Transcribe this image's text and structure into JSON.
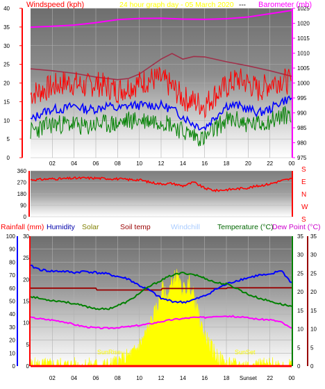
{
  "header": {
    "windspeed": "Windspeed (kph)",
    "title": "24 hour graph day - 05 March 2020",
    "dash": "---",
    "barometer": "Barometer (mb)"
  },
  "legend": {
    "rainfall": "Rainfall (mm)",
    "humidity": "Humidity",
    "solar": "Solar",
    "soil": "Soil temp",
    "windchill": "Windchill",
    "temperature": "Temperature (°C)",
    "dewpoint": "Dew Point (°C)"
  },
  "compass": [
    "S",
    "E",
    "N",
    "W",
    "S"
  ],
  "sunrise": "SunRise",
  "sunset_label": "SunSet",
  "sunset_axis": "Sunset",
  "colors": {
    "windspeed": "#ff0000",
    "gust": "#ff0000",
    "avgwind": "#0000ff",
    "lowwind": "#008000",
    "barometer": "#ff00ff",
    "pressure2": "#a0304a",
    "winddir": "#ff0000",
    "humidity": "#0000ff",
    "temperature": "#008000",
    "dewpoint": "#ff00ff",
    "soiltemp": "#990000",
    "solar": "#ffff00",
    "rain": "#ff0000",
    "title": "#ffff00",
    "windchill": "#aaccff",
    "legendSolar": "#808000"
  },
  "chart_data": [
    {
      "type": "line",
      "name": "wind-barometer",
      "x_ticks": [
        "02",
        "04",
        "06",
        "08",
        "10",
        "12",
        "14",
        "16",
        "18",
        "20",
        "22",
        "00"
      ],
      "left_axis": {
        "ylim": [
          0,
          40
        ],
        "ticks": [
          "0",
          "5",
          "10",
          "15",
          "20",
          "25",
          "30",
          "35",
          "40"
        ],
        "label": "Windspeed (kph)"
      },
      "right_axis": {
        "ylim": [
          975,
          1025
        ],
        "ticks": [
          "975",
          "980",
          "985",
          "990",
          "995",
          "1000",
          "1005",
          "1010",
          "1015",
          "1020",
          "1025"
        ],
        "label": "Barometer (mb)"
      },
      "barometer": {
        "x": [
          0,
          2,
          4,
          6,
          8,
          10,
          12,
          14,
          16,
          18,
          20,
          22,
          24
        ],
        "y": [
          1018.7,
          1019.0,
          1019.4,
          1020.2,
          1021.2,
          1021.6,
          1021.7,
          1021.4,
          1021.3,
          1021.5,
          1022.1,
          1023.2,
          1024.3
        ]
      },
      "pressure_trend": {
        "x": [
          0,
          2,
          4,
          6,
          8,
          9,
          10,
          12,
          13,
          14,
          15,
          16,
          18,
          20,
          22,
          24
        ],
        "y": [
          23.8,
          23.3,
          22.6,
          21.6,
          20.9,
          21.2,
          22.4,
          26.4,
          27.9,
          26.4,
          27.1,
          27.0,
          25.7,
          24.6,
          23.3,
          21.8
        ]
      },
      "wind_upper": {
        "x": [
          0,
          1,
          2,
          3,
          4,
          5,
          6,
          7,
          8,
          9,
          10,
          11,
          12,
          13,
          14,
          15,
          16,
          17,
          18,
          19,
          20,
          21,
          22,
          23,
          24
        ],
        "y": [
          17,
          18,
          19,
          20,
          20,
          19,
          20,
          19,
          18,
          19,
          20,
          21,
          21,
          19,
          16,
          15,
          14,
          17,
          19,
          21,
          20,
          18,
          20,
          21,
          20
        ]
      },
      "wind_avg": {
        "x": [
          0,
          1,
          2,
          3,
          4,
          5,
          6,
          7,
          8,
          9,
          10,
          11,
          12,
          13,
          14,
          15,
          16,
          17,
          18,
          19,
          20,
          21,
          22,
          23,
          24
        ],
        "y": [
          10,
          12,
          13,
          13,
          14,
          13,
          13,
          14,
          13,
          14,
          14,
          14,
          14,
          13,
          11,
          9,
          8,
          11,
          14,
          14,
          13,
          12,
          13,
          15,
          16
        ]
      },
      "wind_low": {
        "x": [
          0,
          1,
          2,
          3,
          4,
          5,
          6,
          7,
          8,
          9,
          10,
          11,
          12,
          13,
          14,
          15,
          16,
          17,
          18,
          19,
          20,
          21,
          22,
          23,
          24
        ],
        "y": [
          7,
          8,
          9,
          9,
          9,
          8,
          9,
          9,
          9,
          10,
          10,
          10,
          10,
          9,
          7,
          6,
          5,
          8,
          10,
          10,
          9,
          9,
          10,
          11,
          12
        ]
      }
    },
    {
      "type": "line",
      "name": "wind-direction",
      "y_ticks": [
        "0",
        "90",
        "180",
        "270",
        "360"
      ],
      "ylim": [
        0,
        360
      ],
      "direction": {
        "x": [
          0,
          1,
          2,
          3,
          4,
          5,
          6,
          7,
          8,
          9,
          10,
          11,
          12,
          13,
          14,
          15,
          16,
          17,
          18,
          19,
          20,
          21,
          22,
          23,
          24
        ],
        "y": [
          290,
          293,
          298,
          298,
          302,
          304,
          303,
          300,
          297,
          292,
          290,
          270,
          258,
          262,
          242,
          270,
          224,
          205,
          212,
          220,
          228,
          243,
          258,
          282,
          298
        ]
      }
    },
    {
      "type": "line",
      "name": "climate",
      "x_ticks": [
        "02",
        "04",
        "06",
        "08",
        "10",
        "12",
        "14",
        "16",
        "18",
        "Sunset",
        "22",
        "00"
      ],
      "rain_axis": {
        "ylim": [
          0,
          100
        ],
        "ticks": [
          "0",
          "10",
          "20",
          "30",
          "40",
          "50",
          "60",
          "70",
          "80",
          "90",
          "100"
        ]
      },
      "humidity_axis": {
        "ylim": [
          0,
          30
        ],
        "ticks": [
          "0",
          "5",
          "10",
          "15",
          "20",
          "25",
          "30"
        ]
      },
      "temperature_axis": {
        "ylim": [
          0,
          35
        ],
        "ticks": [
          "0",
          "5",
          "10",
          "15",
          "20",
          "25",
          "30",
          "35"
        ]
      },
      "humidity": {
        "x": [
          0,
          1,
          2,
          3,
          4,
          5,
          6,
          7,
          8,
          9,
          10,
          11,
          12,
          13,
          14,
          15,
          16,
          17,
          18,
          19,
          20,
          21,
          22,
          23,
          24
        ],
        "y": [
          77,
          74,
          73,
          73,
          72,
          73,
          72,
          71,
          69,
          67,
          62,
          58,
          52,
          50,
          49,
          51,
          54,
          59,
          63,
          66,
          68,
          70,
          70,
          74,
          64
        ]
      },
      "temperature": {
        "x": [
          0,
          1,
          2,
          3,
          4,
          5,
          6,
          7,
          8,
          9,
          10,
          11,
          12,
          13,
          14,
          15,
          16,
          17,
          18,
          19,
          20,
          21,
          22,
          23,
          24
        ],
        "y": [
          18.8,
          18.1,
          17.7,
          17.4,
          16.8,
          16.1,
          15.5,
          15.3,
          16.3,
          17.5,
          19.6,
          21.6,
          23.1,
          24.5,
          25.1,
          24.7,
          23.7,
          22.5,
          22.1,
          20.9,
          19.3,
          18.3,
          17.5,
          16.7,
          16.1
        ]
      },
      "dewpoint": {
        "x": [
          0,
          1,
          2,
          3,
          4,
          5,
          6,
          7,
          8,
          9,
          10,
          11,
          12,
          13,
          14,
          15,
          16,
          17,
          18,
          19,
          20,
          21,
          22,
          23,
          24
        ],
        "y": [
          13.1,
          12.7,
          12.4,
          12.0,
          11.2,
          10.6,
          10.3,
          10.2,
          10.4,
          10.6,
          11.0,
          11.4,
          12.0,
          12.5,
          12.8,
          13.1,
          13.1,
          13.5,
          13.5,
          13.3,
          13.0,
          12.6,
          12.5,
          11.9,
          10.1
        ]
      },
      "soil_temp": {
        "x": [
          0,
          6,
          6.1,
          12,
          12.1,
          18,
          18.1,
          24
        ],
        "y": [
          21.0,
          21.0,
          20.5,
          20.5,
          20.9,
          20.9,
          21.1,
          21.1
        ]
      },
      "solar": {
        "x": [
          0,
          7.3,
          7.8,
          8.5,
          9.5,
          10.3,
          10.8,
          11.3,
          11.8,
          12.1,
          12.5,
          13.0,
          13.4,
          13.8,
          14.2,
          14.6,
          14.9,
          15.4,
          15.8,
          16.2,
          16.6,
          17.0,
          17.4,
          17.8,
          18.3,
          24
        ],
        "y": [
          0,
          0,
          2,
          5,
          10,
          20,
          28,
          38,
          48,
          60,
          52,
          64,
          70,
          60,
          58,
          64,
          56,
          40,
          28,
          20,
          14,
          9,
          5,
          2,
          0,
          0
        ]
      },
      "rain": {
        "x": [
          0,
          24
        ],
        "y": [
          0,
          0
        ]
      }
    }
  ]
}
